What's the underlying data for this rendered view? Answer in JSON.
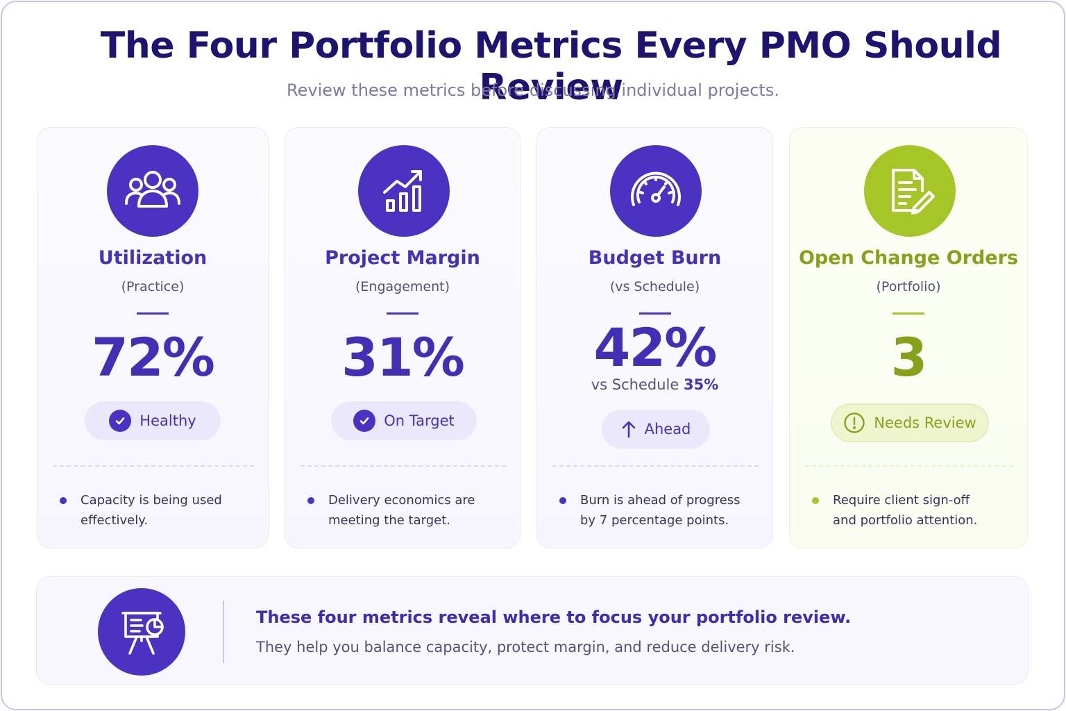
{
  "header": {
    "title": "The Four Portfolio Metrics Every PMO Should Review",
    "subtitle": "Review these metrics before discussing individual projects."
  },
  "colors": {
    "primary": "#4b32c3",
    "accent_lime": "#a6c526",
    "title": "#1c1470"
  },
  "cards": [
    {
      "icon": "team-icon",
      "title": "Utilization",
      "subtitle": "(Practice)",
      "value": "72%",
      "status_icon": "check-circle-icon",
      "status": "Healthy",
      "note_line1": "Capacity is being used",
      "note_line2": "effectively."
    },
    {
      "icon": "bar-chart-trend-icon",
      "title": "Project Margin",
      "subtitle": "(Engagement)",
      "value": "31%",
      "status_icon": "check-circle-icon",
      "status": "On Target",
      "note_line1": "Delivery economics are",
      "note_line2": "meeting the target."
    },
    {
      "icon": "speedometer-icon",
      "title": "Budget Burn",
      "subtitle": "(vs Schedule)",
      "value": "42%",
      "compare_label": "vs Schedule",
      "compare_value": "35%",
      "status_icon": "arrow-up-icon",
      "status": "Ahead",
      "note_line1": "Burn is ahead of progress",
      "note_line2": "by 7 percentage points."
    },
    {
      "icon": "document-edit-icon",
      "title": "Open Change Orders",
      "subtitle": "(Portfolio)",
      "value": "3",
      "status_icon": "alert-circle-icon",
      "status": "Needs Review",
      "note_line1": "Require client sign-off",
      "note_line2": "and portfolio attention."
    }
  ],
  "footer": {
    "icon": "presentation-board-icon",
    "headline": "These four metrics reveal where to focus your portfolio review.",
    "text": "They help you balance capacity, protect margin, and reduce delivery risk."
  }
}
